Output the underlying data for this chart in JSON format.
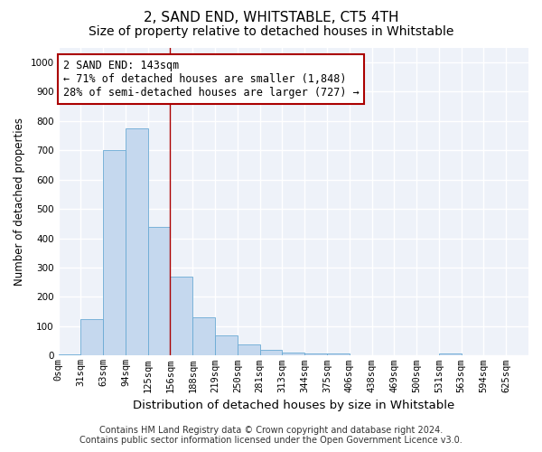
{
  "title": "2, SAND END, WHITSTABLE, CT5 4TH",
  "subtitle": "Size of property relative to detached houses in Whitstable",
  "xlabel": "Distribution of detached houses by size in Whitstable",
  "ylabel": "Number of detached properties",
  "bar_color": "#c5d8ee",
  "bar_edge_color": "#6aaad4",
  "background_color": "#eef2f9",
  "grid_color": "#ffffff",
  "categories": [
    "0sqm",
    "31sqm",
    "63sqm",
    "94sqm",
    "125sqm",
    "156sqm",
    "188sqm",
    "219sqm",
    "250sqm",
    "281sqm",
    "313sqm",
    "344sqm",
    "375sqm",
    "406sqm",
    "438sqm",
    "469sqm",
    "500sqm",
    "531sqm",
    "563sqm",
    "594sqm",
    "625sqm"
  ],
  "values": [
    5,
    125,
    700,
    775,
    440,
    270,
    130,
    68,
    38,
    20,
    10,
    8,
    6,
    0,
    0,
    0,
    0,
    6,
    0,
    0,
    0
  ],
  "ylim": [
    0,
    1050
  ],
  "yticks": [
    0,
    100,
    200,
    300,
    400,
    500,
    600,
    700,
    800,
    900,
    1000
  ],
  "red_line_bar_index": 5,
  "annotation_text": "2 SAND END: 143sqm\n← 71% of detached houses are smaller (1,848)\n28% of semi-detached houses are larger (727) →",
  "annotation_box_color": "#ffffff",
  "annotation_box_edge_color": "#aa0000",
  "footer_line1": "Contains HM Land Registry data © Crown copyright and database right 2024.",
  "footer_line2": "Contains public sector information licensed under the Open Government Licence v3.0.",
  "title_fontsize": 11,
  "subtitle_fontsize": 10,
  "xlabel_fontsize": 9.5,
  "ylabel_fontsize": 8.5,
  "tick_fontsize": 7.5,
  "annotation_fontsize": 8.5,
  "footer_fontsize": 7
}
